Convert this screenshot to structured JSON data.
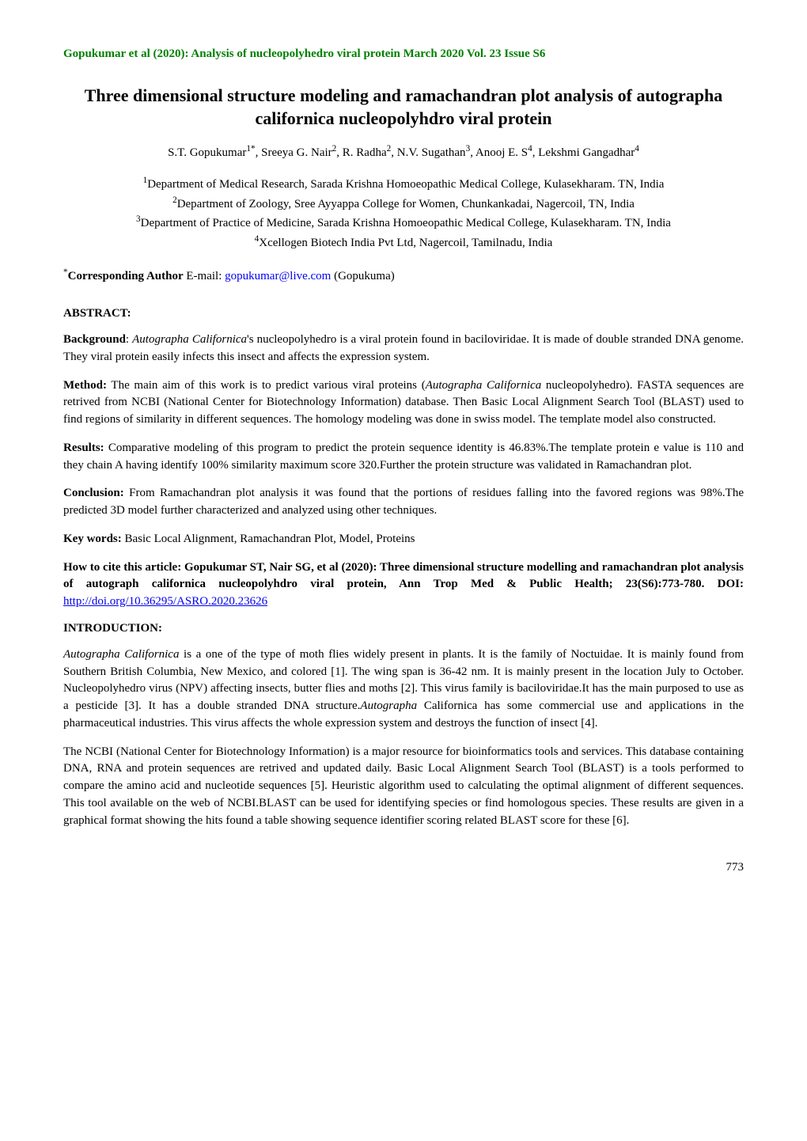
{
  "running_header": "Gopukumar et al (2020): Analysis of nucleopolyhedro viral protein March 2020 Vol. 23 Issue S6",
  "title": "Three dimensional structure modeling and ramachandran plot analysis of autographa californica nucleopolyhdro viral protein",
  "authors_html": "S.T. Gopukumar<sup>1*</sup>, Sreeya G. Nair<sup>2</sup>, R. Radha<sup>2</sup>, N.V. Sugathan<sup>3</sup>, Anooj E. S<sup>4</sup>, Lekshmi Gangadhar<sup>4</sup>",
  "affiliations": [
    "<sup>1</sup>Department of Medical Research, Sarada Krishna Homoeopathic Medical College, Kulasekharam. TN, India",
    "<sup>2</sup>Department of Zoology, Sree Ayyappa College for Women, Chunkankadai, Nagercoil, TN, India",
    "<sup>3</sup>Department of Practice of Medicine, Sarada Krishna Homoeopathic Medical College, Kulasekharam. TN, India",
    "<sup>4</sup>Xcellogen Biotech India Pvt Ltd, Nagercoil, Tamilnadu, India"
  ],
  "corresponding": {
    "label_html": "<sup>*</sup><b>Corresponding Author</b> E-mail: ",
    "email": "gopukumar@live.com",
    "suffix": " (Gopukuma)"
  },
  "sections": {
    "abstract_heading": "ABSTRACT:",
    "background": {
      "label": "Background",
      "text_html": ": <i>Autographa Californica</i>'s nucleopolyhedro is a viral protein found in baciloviridae. It is made of double stranded DNA genome. They viral protein easily infects this insect and affects the expression system."
    },
    "method": {
      "label": "Method:",
      "text_html": " The main aim of this work is to predict various viral proteins (<i>Autographa Californica</i> nucleopolyhedro). FASTA sequences are retrived from NCBI (National Center for Biotechnology Information) database. Then Basic Local Alignment Search Tool (BLAST) used to find regions of similarity in different sequences. The homology modeling was done in swiss model. The template model also constructed."
    },
    "results": {
      "label": "Results:",
      "text_html": " Comparative modeling of this program to predict the protein sequence identity is 46.83%.The template protein e value is 110 and they chain A having identify 100% similarity maximum score 320.Further the protein structure was validated in Ramachandran plot."
    },
    "conclusion": {
      "label": "Conclusion:",
      "text_html": " From Ramachandran plot analysis it was found that the portions of residues falling into the favored regions was 98%.The predicted 3D model further characterized and analyzed using other techniques."
    },
    "keywords": {
      "label": "Key words:",
      "text": " Basic Local Alignment, Ramachandran Plot, Model, Proteins"
    },
    "citation": {
      "prefix": "How to cite this article:  Gopukumar ST, Nair SG, et al (2020): Three dimensional structure modelling and ramachandran plot analysis  of autograph californica nucleopolyhdro viral protein, Ann Trop Med & Public Health; 23(S6):773-780. DOI: ",
      "doi": "http://doi.org/10.36295/ASRO.2020.23626"
    },
    "introduction_heading": "INTRODUCTION:",
    "intro_para1_html": "<i>Autographa Californica</i> is a one of the type of moth flies widely present in plants. It is the family of Noctuidae. It is mainly found from Southern British Columbia, New Mexico, and colored [1]. The wing span is 36-42 nm. It is mainly present in the location July to October. Nucleopolyhedro virus (NPV) affecting insects, butter flies and moths [2]. This virus family is baciloviridae.It has the main purposed to use as a pesticide [3]. It has a double stranded DNA structure.<i>Autographa</i> Californica has some commercial use and applications in the pharmaceutical industries. This virus affects the whole expression system and destroys the function of insect [4].",
    "intro_para2": "The NCBI (National Center for Biotechnology Information) is a major resource for bioinformatics tools and services. This database containing DNA, RNA and protein sequences are retrived and updated daily. Basic Local Alignment Search Tool (BLAST) is a tools performed to compare the amino acid and nucleotide sequences [5]. Heuristic algorithm used to calculating the optimal alignment of different sequences. This tool available on the web of NCBI.BLAST can be used for identifying species or find homologous species. These results are given in a graphical format showing the hits found a table showing sequence identifier scoring related BLAST score for these [6]."
  },
  "page_number": "773",
  "colors": {
    "header_green": "#008000",
    "link_blue": "#0000ee",
    "text": "#000000",
    "background": "#ffffff"
  }
}
